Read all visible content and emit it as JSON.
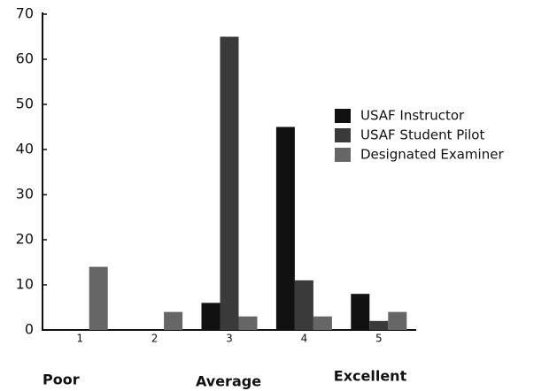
{
  "chart_data": {
    "type": "bar",
    "categories": [
      "1",
      "2",
      "3",
      "4",
      "5"
    ],
    "series": [
      {
        "name": "USAF Instructor",
        "color": "#111111",
        "values": [
          0,
          0,
          6,
          45,
          8
        ]
      },
      {
        "name": "USAF Student Pilot",
        "color": "#3a3a3a",
        "values": [
          0,
          0,
          65,
          11,
          2
        ]
      },
      {
        "name": "Designated Examiner",
        "color": "#666666",
        "values": [
          14,
          4,
          3,
          3,
          4
        ]
      }
    ],
    "ylim": [
      0,
      70
    ],
    "yticks": [
      0,
      10,
      20,
      30,
      40,
      50,
      60,
      70
    ],
    "annotations": [
      "Poor",
      "Average",
      "Excellent"
    ],
    "legend": "right"
  }
}
